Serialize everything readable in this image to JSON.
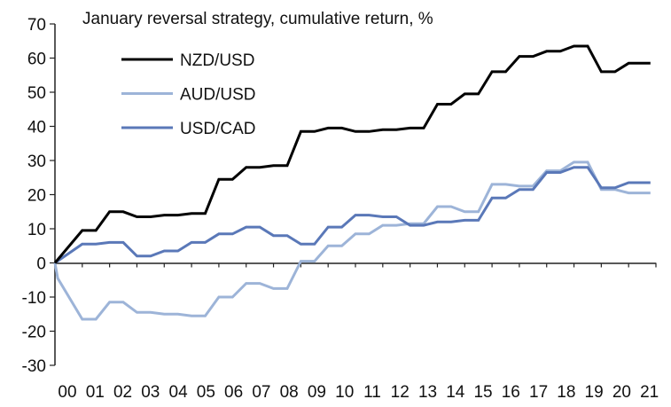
{
  "chart_data": {
    "type": "line",
    "title": "January reversal strategy, cumulative return, %",
    "xlabel": "",
    "ylabel": "",
    "ylim": [
      -30,
      70
    ],
    "yticks": [
      70,
      60,
      50,
      40,
      30,
      20,
      10,
      0,
      -10,
      -20,
      -30
    ],
    "ytick_labels": [
      "70",
      "60",
      "50",
      "40",
      "30",
      "20",
      "10",
      "0",
      "-10",
      "-20",
      "-30"
    ],
    "xlim": [
      0,
      22
    ],
    "xtick_labels": [
      "00",
      "01",
      "02",
      "03",
      "04",
      "05",
      "06",
      "07",
      "08",
      "09",
      "10",
      "11",
      "12",
      "13",
      "14",
      "15",
      "16",
      "17",
      "18",
      "19",
      "20",
      "21"
    ],
    "legend_position": "top-left",
    "series": [
      {
        "name": "NZD/USD",
        "color": "#000000",
        "x": [
          0,
          1,
          1.5,
          2,
          2.5,
          3,
          3.5,
          4,
          4.5,
          5,
          5.5,
          6,
          6.5,
          7,
          7.5,
          8,
          8.5,
          9,
          9.5,
          10,
          10.5,
          11,
          11.5,
          12,
          12.5,
          13,
          13.5,
          14,
          14.5,
          15,
          15.5,
          16,
          16.5,
          17,
          17.5,
          18,
          18.5,
          19,
          19.5,
          20,
          20.5,
          21,
          21.5,
          21.8
        ],
        "values": [
          0,
          9.5,
          9.5,
          15,
          15,
          13.5,
          13.5,
          14,
          14,
          14.5,
          14.5,
          24.5,
          24.5,
          28,
          28,
          28.5,
          28.5,
          38.5,
          38.5,
          39.5,
          39.5,
          38.5,
          38.5,
          39,
          39,
          39.5,
          39.5,
          46.5,
          46.5,
          49.5,
          49.5,
          56,
          56,
          60.5,
          60.5,
          62,
          62,
          63.5,
          63.5,
          56,
          56,
          58.5,
          58.5,
          58.5
        ]
      },
      {
        "name": "AUD/USD",
        "color": "#9db4d8",
        "x": [
          0,
          0.1,
          1,
          1.5,
          2,
          2.5,
          3,
          3.5,
          4,
          4.5,
          5,
          5.5,
          6,
          6.5,
          7,
          7.5,
          8,
          8.5,
          9,
          9.5,
          10,
          10.5,
          11,
          11.5,
          12,
          12.5,
          13,
          13.5,
          14,
          14.5,
          15,
          15.5,
          16,
          16.5,
          17,
          17.5,
          18,
          18.5,
          19,
          19.5,
          20,
          20.5,
          21,
          21.5,
          21.8
        ],
        "values": [
          0,
          -4.5,
          -16.5,
          -16.5,
          -11.5,
          -11.5,
          -14.5,
          -14.5,
          -15,
          -15,
          -15.5,
          -15.5,
          -10,
          -10,
          -6,
          -6,
          -7.5,
          -7.5,
          0.5,
          0.5,
          5,
          5,
          8.5,
          8.5,
          11,
          11,
          11.5,
          11.5,
          16.5,
          16.5,
          15,
          15,
          23,
          23,
          22.5,
          22.5,
          27,
          27,
          29.5,
          29.5,
          21.5,
          21.5,
          20.5,
          20.5,
          20.5
        ]
      },
      {
        "name": "USD/CAD",
        "color": "#5a78b8",
        "x": [
          0,
          1,
          1.5,
          2,
          2.5,
          3,
          3.5,
          4,
          4.5,
          5,
          5.5,
          6,
          6.5,
          7,
          7.5,
          8,
          8.5,
          9,
          9.5,
          10,
          10.5,
          11,
          11.5,
          12,
          12.5,
          13,
          13.5,
          14,
          14.5,
          15,
          15.5,
          16,
          16.5,
          17,
          17.5,
          18,
          18.5,
          19,
          19.5,
          20,
          20.5,
          21,
          21.5,
          21.8
        ],
        "values": [
          0,
          5.5,
          5.5,
          6,
          6,
          2,
          2,
          3.5,
          3.5,
          6,
          6,
          8.5,
          8.5,
          10.5,
          10.5,
          8,
          8,
          5.5,
          5.5,
          10.5,
          10.5,
          14,
          14,
          13.5,
          13.5,
          11,
          11,
          12,
          12,
          12.5,
          12.5,
          19,
          19,
          21.5,
          21.5,
          26.5,
          26.5,
          28,
          28,
          22,
          22,
          23.5,
          23.5,
          23.5
        ]
      }
    ]
  }
}
